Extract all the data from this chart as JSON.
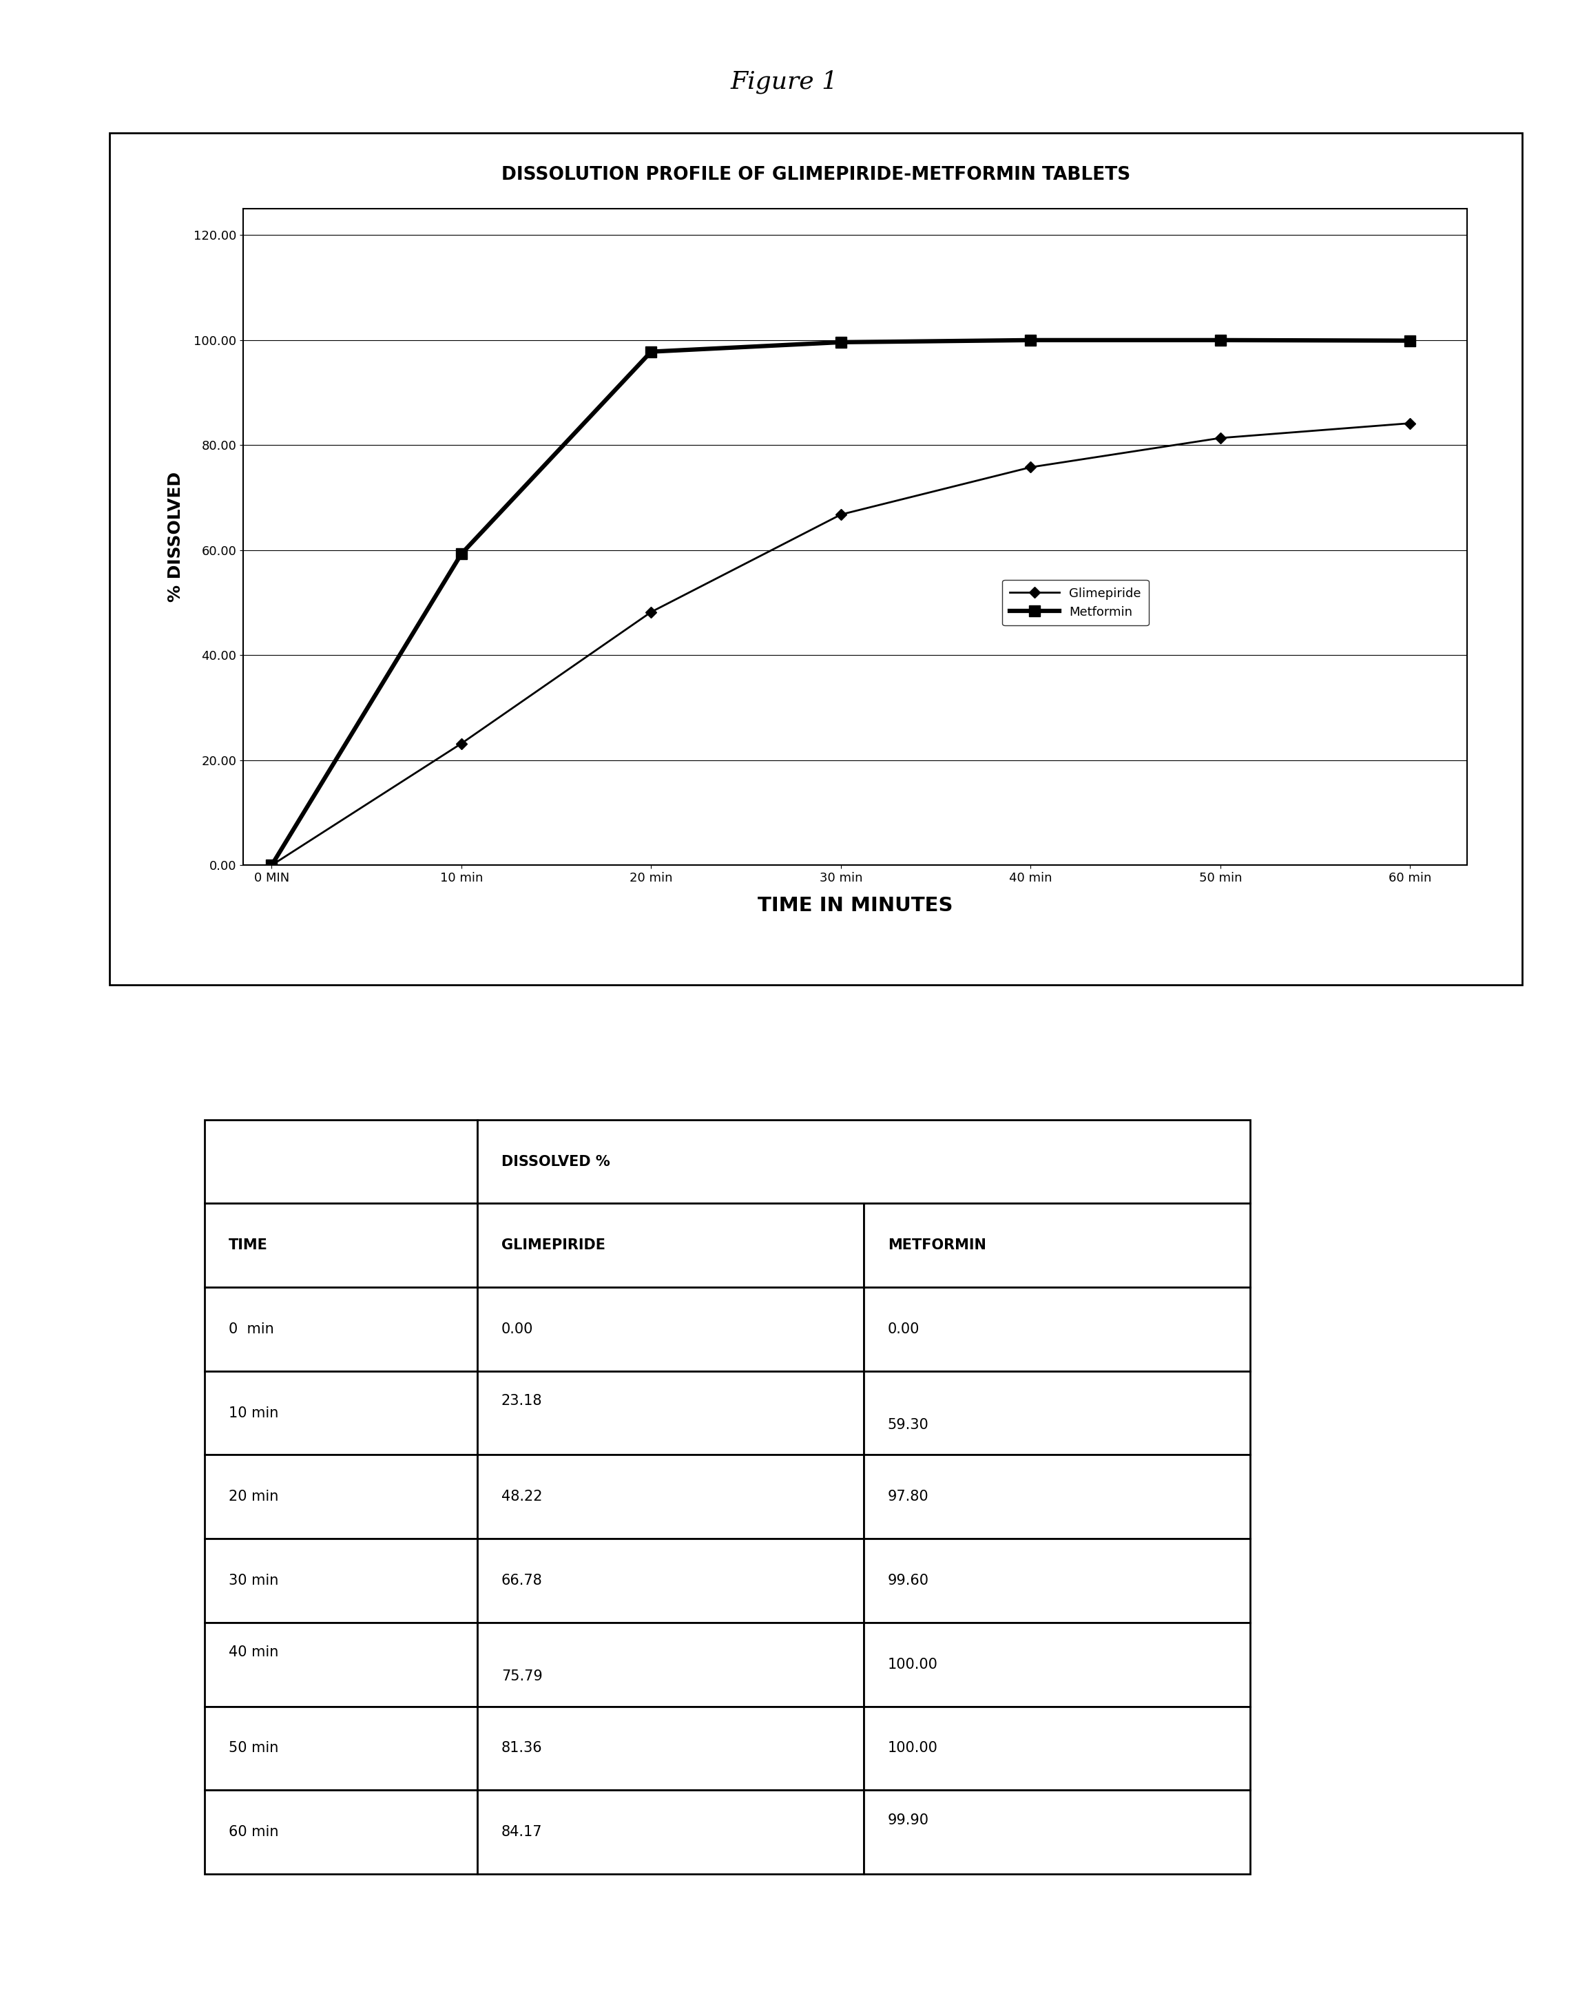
{
  "figure_title": "Figure 1",
  "chart_title": "DISSOLUTION PROFILE OF GLIMEPIRIDE-METFORMIN TABLETS",
  "xlabel": "TIME IN MINUTES",
  "ylabel": "% DISSOLVED",
  "x_ticks": [
    0,
    10,
    20,
    30,
    40,
    50,
    60
  ],
  "x_tick_labels": [
    "0 MIN",
    "10 min",
    "20 min",
    "30 min",
    "40 min",
    "50 min",
    "60 min"
  ],
  "y_ticks": [
    0.0,
    20.0,
    40.0,
    60.0,
    80.0,
    100.0,
    120.0
  ],
  "y_tick_labels": [
    "0.00",
    "20.00",
    "40.00",
    "60.00",
    "80.00",
    "100.00",
    "120.00"
  ],
  "ylim_max": 125,
  "glimepiride_x": [
    0,
    10,
    20,
    30,
    40,
    50,
    60
  ],
  "glimepiride_y": [
    0.0,
    23.18,
    48.22,
    66.78,
    75.79,
    81.36,
    84.17
  ],
  "metformin_x": [
    0,
    10,
    20,
    30,
    40,
    50,
    60
  ],
  "metformin_y": [
    0.0,
    59.3,
    97.8,
    99.6,
    100.0,
    100.0,
    99.9
  ],
  "legend_glimepiride": "Glimepiride",
  "legend_metformin": "Metformin",
  "table_rows": [
    [
      "0  min",
      "0.00",
      "0.00"
    ],
    [
      "10 min",
      "23.18",
      "59.30"
    ],
    [
      "20 min",
      "48.22",
      "97.80"
    ],
    [
      "30 min",
      "66.78",
      "99.60"
    ],
    [
      "40 min",
      "75.79",
      "100.00"
    ],
    [
      "50 min",
      "81.36",
      "100.00"
    ],
    [
      "60 min",
      "84.17",
      "99.90"
    ]
  ],
  "bg_color": "#ffffff"
}
